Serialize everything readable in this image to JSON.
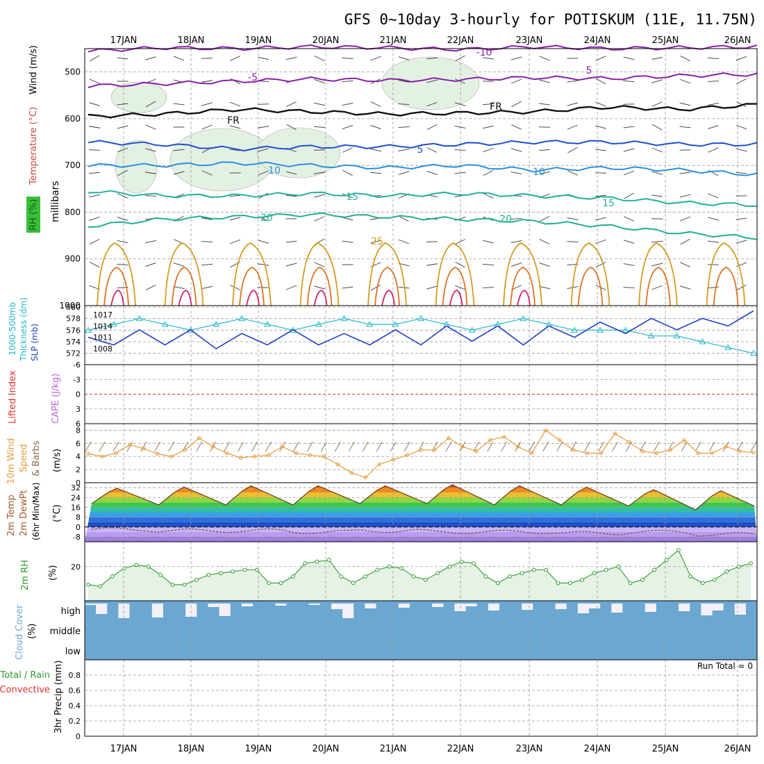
{
  "page": {
    "title": "GFS 0~10day 3-hourly for POTISKUM (11E, 11.75N)"
  },
  "colors": {
    "temp_iso": "#ffffff",
    "rh_shade": "#e3f1e3",
    "barb": "#333333",
    "thickness": "#22b8c8",
    "slp": "#1f3fc4",
    "wind10": "#e89a3a",
    "rh2m": "#2e9b2e",
    "cloud": "#6aa8d2",
    "li": "#e03030",
    "cape": "#bb66dd"
  },
  "days": [
    "17JAN",
    "18JAN",
    "19JAN",
    "20JAN",
    "21JAN",
    "22JAN",
    "23JAN",
    "24JAN",
    "25JAN",
    "26JAN"
  ],
  "y_labels": {
    "upper_left": [
      "Wind (m/s)",
      "Temperature (°C)",
      "RH (%)"
    ],
    "upper_pressure": "millibars",
    "thickness": [
      "1000-500mb",
      "Thickness (dm)"
    ],
    "slp": "SLP (mb)",
    "li": "Lifted Index",
    "cape": "CAPE (J/kg)",
    "wind10": [
      "10m Wind",
      "Speed",
      "(m/s)",
      "& Barbs"
    ],
    "temp2m": [
      "2m Temp",
      "2m DewPt",
      "(6hr Min/Max)",
      "(°C)"
    ],
    "rh2m": [
      "2m RH",
      "(%)"
    ],
    "cloud": [
      "Cloud Cover",
      "(%)"
    ],
    "precip": [
      "Total / Rain",
      "Convective",
      "3hr Precip (mm)"
    ]
  },
  "run_total": "Run Total = 0",
  "cloud_levels": [
    "high",
    "middle",
    "low"
  ],
  "chart_data": [
    {
      "type": "line",
      "name": "upper-air",
      "y_ticks": [
        500,
        600,
        700,
        800,
        900,
        1000
      ],
      "isotherm_labels": [
        "-10",
        "-5",
        "FR",
        "5",
        "10",
        "15",
        "20",
        "25"
      ],
      "series": [
        {
          "name": "-10",
          "level_mb": [
            455,
            448,
            450,
            446,
            448,
            452,
            446,
            450,
            448,
            446
          ]
        },
        {
          "name": "-5",
          "level_mb": [
            530,
            525,
            520,
            515,
            518,
            516,
            512,
            514,
            508,
            505
          ]
        },
        {
          "name": "FR",
          "level_mb": [
            595,
            590,
            580,
            585,
            590,
            588,
            585,
            575,
            580,
            570
          ]
        },
        {
          "name": "5",
          "level_mb": [
            650,
            655,
            665,
            660,
            660,
            655,
            650,
            650,
            655,
            655
          ]
        },
        {
          "name": "10",
          "level_mb": [
            700,
            700,
            695,
            700,
            705,
            700,
            710,
            705,
            710,
            720
          ]
        },
        {
          "name": "15",
          "level_mb": [
            755,
            765,
            765,
            760,
            765,
            760,
            765,
            770,
            780,
            785
          ]
        },
        {
          "name": "20",
          "level_mb": [
            830,
            815,
            810,
            805,
            810,
            815,
            820,
            830,
            845,
            855
          ]
        }
      ],
      "ylim": [
        450,
        1000
      ]
    },
    {
      "type": "line",
      "name": "thickness-slp",
      "thickness_ticks": [
        572,
        574,
        576,
        578,
        580
      ],
      "slp_ticks": [
        1008,
        1011,
        1014,
        1017
      ],
      "series": [
        {
          "name": "thickness",
          "values": [
            576,
            577,
            578,
            577,
            576,
            577,
            578,
            577,
            576,
            577,
            578,
            577,
            577,
            578,
            577,
            576,
            577,
            578,
            577,
            576,
            576,
            576,
            575,
            575,
            574,
            573,
            572
          ]
        },
        {
          "name": "slp",
          "values": [
            1011,
            1009,
            1013,
            1009,
            1013,
            1008,
            1012,
            1009,
            1013,
            1009,
            1012,
            1009,
            1013,
            1009,
            1014,
            1010,
            1014,
            1009,
            1014,
            1011,
            1015,
            1012,
            1016,
            1013,
            1016,
            1014,
            1018
          ]
        }
      ]
    },
    {
      "type": "line",
      "name": "lifted-index",
      "y_ticks": [
        -6,
        -3,
        0,
        3,
        6
      ],
      "ylim": [
        -6,
        6
      ]
    },
    {
      "type": "line",
      "name": "10m-wind",
      "y_ticks": [
        0,
        2,
        4,
        6,
        8
      ],
      "values": [
        4.4,
        4.0,
        4.5,
        5.8,
        5.2,
        4.4,
        4.0,
        5.0,
        6.8,
        5.5,
        4.5,
        3.8,
        4.0,
        4.2,
        5.5,
        4.5,
        4.2,
        4.0,
        2.8,
        1.5,
        0.8,
        2.8,
        3.5,
        4.2,
        5.0,
        5.0,
        6.8,
        5.5,
        4.8,
        6.5,
        7.0,
        5.5,
        4.5,
        8.0,
        6.5,
        5.0,
        4.5,
        4.5,
        7.5,
        6.2,
        4.8,
        4.5,
        5.0,
        6.5,
        4.5,
        4.5,
        5.5,
        4.8,
        4.6
      ],
      "ylim": [
        0,
        9
      ]
    },
    {
      "type": "area",
      "name": "2m-temperature",
      "y_ticks": [
        -8,
        0,
        8,
        16,
        24,
        32
      ],
      "temp_max": [
        32,
        33,
        34,
        34,
        34,
        35,
        34,
        33,
        31,
        30
      ],
      "temp_min": [
        19,
        18,
        18,
        18,
        19,
        19,
        18,
        18,
        17,
        14
      ],
      "dewpt": [
        -2,
        -3,
        -3,
        -4,
        -3,
        -4,
        -4,
        -5,
        -4,
        -6
      ],
      "ylim": [
        -12,
        36
      ]
    },
    {
      "type": "area",
      "name": "2m-rh",
      "y_ticks": [
        20
      ],
      "values": [
        9,
        8,
        14,
        19,
        21,
        20,
        15,
        9,
        9,
        12,
        15,
        16,
        17,
        18,
        18,
        10,
        10,
        14,
        22,
        23,
        24,
        14,
        10,
        14,
        18,
        20,
        19,
        14,
        12,
        16,
        20,
        23,
        22,
        14,
        10,
        14,
        16,
        18,
        18,
        10,
        10,
        12,
        16,
        18,
        20,
        10,
        12,
        18,
        24,
        30,
        14,
        10,
        12,
        17,
        20,
        22
      ]
    },
    {
      "type": "bar",
      "name": "cloud-cover",
      "levels": [
        "high",
        "middle",
        "low"
      ]
    },
    {
      "type": "bar",
      "name": "3hr-precip",
      "y_ticks": [
        0,
        0.2,
        0.4,
        0.6,
        0.8
      ],
      "ylim": [
        0,
        1
      ]
    }
  ]
}
